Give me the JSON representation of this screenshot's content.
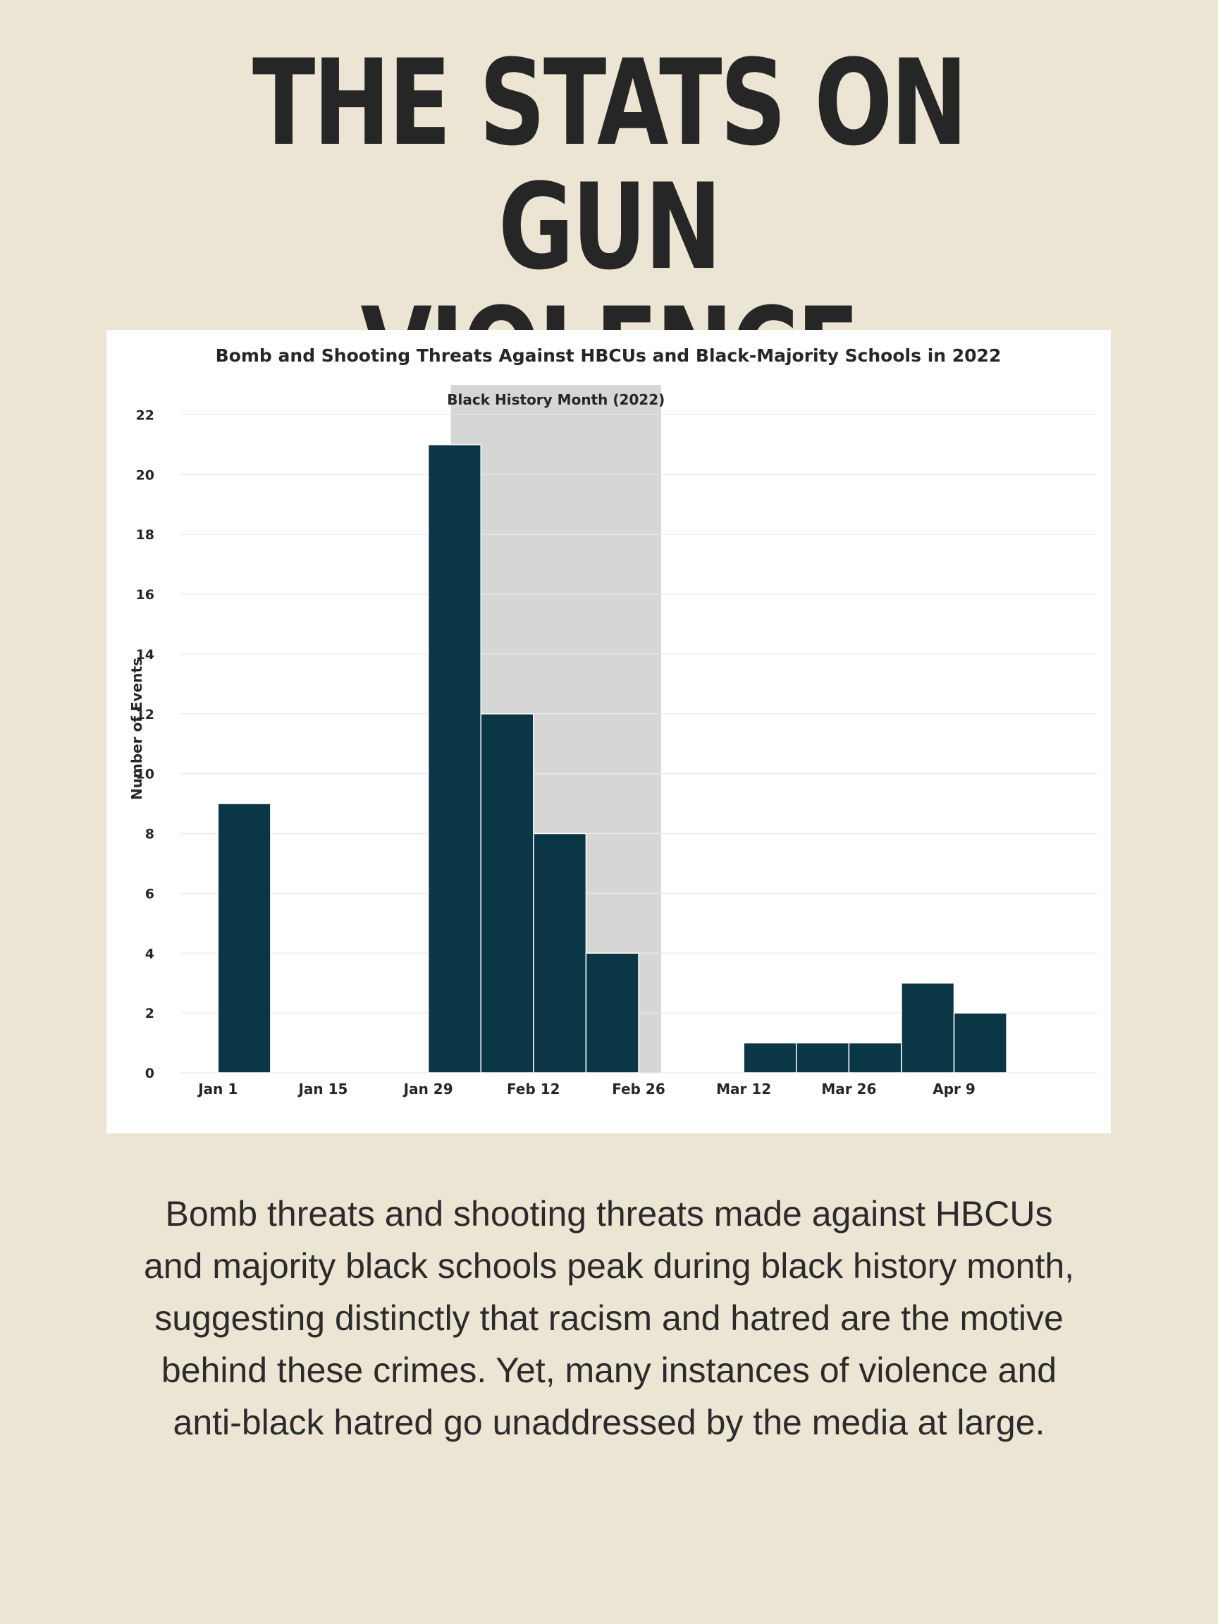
{
  "page": {
    "title_line1": "THE STATS ON GUN",
    "title_line2": "VIOLENCE",
    "body_text": "Bomb threats and shooting threats made against HBCUs and majority black schools peak during black history month, suggesting distinctly that racism and hatred are the motive behind these crimes. Yet, many instances of violence and anti-black hatred go unaddressed by the media at large."
  },
  "colors": {
    "background": "#ede5d4",
    "bar": "#0a3645",
    "highlight": "#d6d6d6",
    "text": "#262626"
  },
  "chart_data": {
    "type": "bar",
    "title": "Bomb and Shooting Threats Against HBCUs and Black-Majority Schools in 2022",
    "xlabel": "",
    "ylabel": "Number of Events",
    "ylim": [
      0,
      23
    ],
    "yticks": [
      0,
      2,
      4,
      6,
      8,
      10,
      12,
      14,
      16,
      18,
      20,
      22
    ],
    "xlim": [
      "2021-12-27",
      "2022-04-28"
    ],
    "xticks": [
      {
        "date": "2022-01-01",
        "label": "Jan 1"
      },
      {
        "date": "2022-01-15",
        "label": "Jan 15"
      },
      {
        "date": "2022-01-29",
        "label": "Jan 29"
      },
      {
        "date": "2022-02-12",
        "label": "Feb 12"
      },
      {
        "date": "2022-02-26",
        "label": "Feb 26"
      },
      {
        "date": "2022-03-12",
        "label": "Mar 12"
      },
      {
        "date": "2022-03-26",
        "label": "Mar 26"
      },
      {
        "date": "2022-04-09",
        "label": "Apr 9"
      }
    ],
    "bins": [
      {
        "start": "2022-01-01",
        "end": "2022-01-08",
        "value": 9
      },
      {
        "start": "2022-01-29",
        "end": "2022-02-05",
        "value": 21
      },
      {
        "start": "2022-02-05",
        "end": "2022-02-12",
        "value": 12
      },
      {
        "start": "2022-02-12",
        "end": "2022-02-19",
        "value": 8
      },
      {
        "start": "2022-02-19",
        "end": "2022-02-26",
        "value": 4
      },
      {
        "start": "2022-03-12",
        "end": "2022-03-19",
        "value": 1
      },
      {
        "start": "2022-03-19",
        "end": "2022-03-26",
        "value": 1
      },
      {
        "start": "2022-03-26",
        "end": "2022-04-02",
        "value": 1
      },
      {
        "start": "2022-04-02",
        "end": "2022-04-09",
        "value": 3
      },
      {
        "start": "2022-04-09",
        "end": "2022-04-16",
        "value": 2
      }
    ],
    "highlight_band": {
      "start": "2022-02-01",
      "end": "2022-03-01",
      "label": "Black History Month (2022)"
    },
    "grid": true,
    "legend": "none"
  }
}
